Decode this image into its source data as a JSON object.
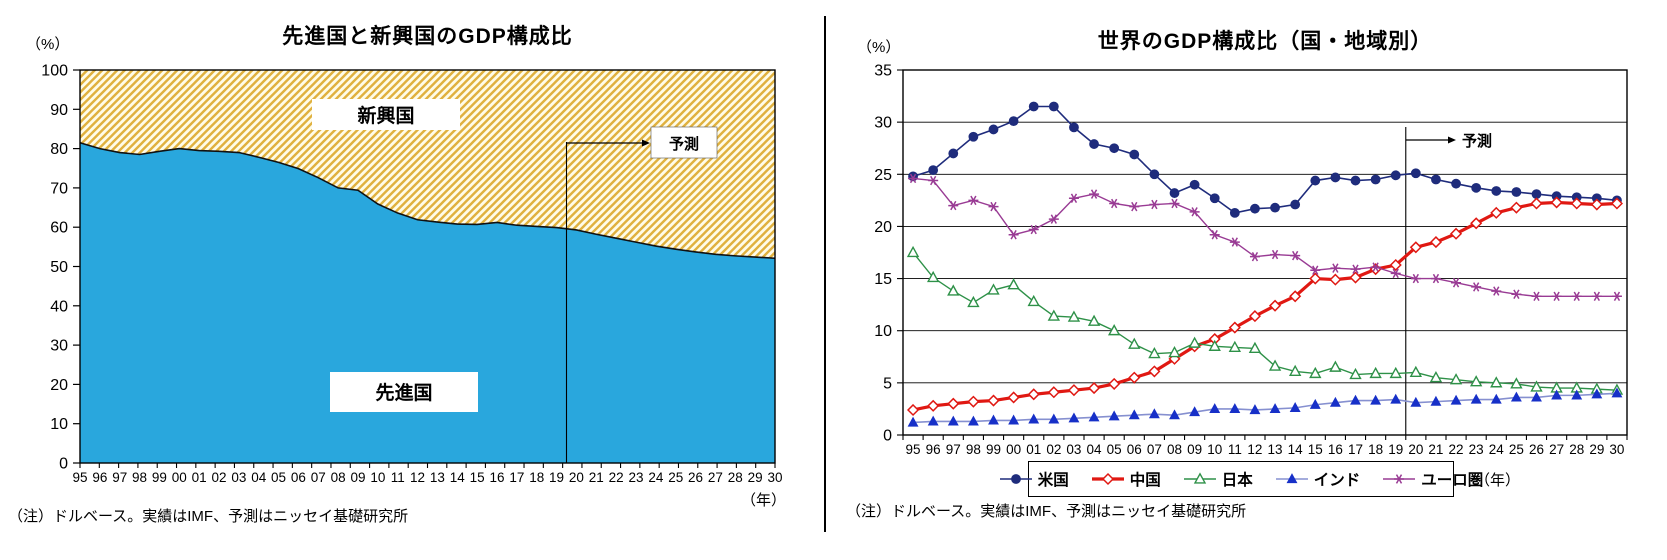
{
  "panels": {
    "left": {
      "title": "先進国と新興国のGDP構成比",
      "unit_percent": "（%）",
      "unit_year": "（年）",
      "note": "（注）ドルベース。実績はIMF、予測はニッセイ基礎研究所",
      "labels": {
        "emerging": "新興国",
        "developed": "先進国",
        "forecast": "予測"
      }
    },
    "right": {
      "title": "世界のGDP構成比（国・地域別）",
      "unit_percent": "（%）",
      "unit_year": "（年）",
      "note": "（注）ドルベース。実績はIMF、予測はニッセイ基礎研究所",
      "labels": {
        "forecast": "予測"
      }
    }
  },
  "chart_data": [
    {
      "type": "area",
      "stacked": true,
      "title": "先進国と新興国のGDP構成比",
      "ylabel": "（%）",
      "xlabel": "（年）",
      "ylim": [
        0,
        100
      ],
      "yticks": [
        0,
        10,
        20,
        30,
        40,
        50,
        60,
        70,
        80,
        90,
        100
      ],
      "grid": false,
      "forecast_starts_after_category": "19",
      "annotation": "予測",
      "categories": [
        "95",
        "96",
        "97",
        "98",
        "99",
        "00",
        "01",
        "02",
        "03",
        "04",
        "05",
        "06",
        "07",
        "08",
        "09",
        "10",
        "11",
        "12",
        "13",
        "14",
        "15",
        "16",
        "17",
        "18",
        "19",
        "20",
        "21",
        "22",
        "23",
        "24",
        "25",
        "26",
        "27",
        "28",
        "29",
        "30"
      ],
      "series": [
        {
          "name": "先進国",
          "fill": "solid",
          "color": "#29A7DD",
          "values": [
            81.5,
            80.0,
            79.0,
            78.5,
            79.3,
            80.0,
            79.5,
            79.3,
            79.0,
            77.8,
            76.5,
            74.9,
            72.6,
            70.0,
            69.4,
            65.9,
            63.6,
            61.9,
            61.3,
            60.8,
            60.7,
            61.2,
            60.5,
            60.2,
            59.9,
            59.3,
            58.2,
            57.2,
            56.2,
            55.2,
            54.4,
            53.7,
            53.1,
            52.7,
            52.4,
            52.1
          ]
        },
        {
          "name": "新興国",
          "fill": "diagonal-hatch",
          "color": "#E0B13F",
          "hatch_bg": "#FFFCE8",
          "values": [
            18.5,
            20.0,
            21.0,
            21.5,
            20.7,
            20.0,
            20.5,
            20.7,
            21.0,
            22.2,
            23.5,
            25.1,
            27.4,
            30.0,
            30.6,
            34.1,
            36.4,
            38.1,
            38.7,
            39.2,
            39.3,
            38.8,
            39.5,
            39.8,
            40.1,
            40.7,
            41.8,
            42.8,
            43.8,
            44.8,
            45.6,
            46.3,
            46.9,
            47.3,
            47.6,
            47.9
          ]
        }
      ]
    },
    {
      "type": "line",
      "title": "世界のGDP構成比（国・地域別）",
      "ylabel": "（%）",
      "xlabel": "（年）",
      "ylim": [
        0,
        35
      ],
      "yticks": [
        0,
        5,
        10,
        15,
        20,
        25,
        30,
        35
      ],
      "grid": true,
      "legend_position": "bottom",
      "forecast_starts_after_category": "19",
      "annotation": "予測",
      "categories": [
        "95",
        "96",
        "97",
        "98",
        "99",
        "00",
        "01",
        "02",
        "03",
        "04",
        "05",
        "06",
        "07",
        "08",
        "09",
        "10",
        "11",
        "12",
        "13",
        "14",
        "15",
        "16",
        "17",
        "18",
        "19",
        "20",
        "21",
        "22",
        "23",
        "24",
        "25",
        "26",
        "27",
        "28",
        "29",
        "30"
      ],
      "series": [
        {
          "name": "米国",
          "marker": "circle-filled",
          "color": "#1F2C7C",
          "line_color": "#1F2C7C",
          "line_width": 1.6,
          "values": [
            24.8,
            25.4,
            27.0,
            28.6,
            29.3,
            30.1,
            31.5,
            31.5,
            29.5,
            27.9,
            27.5,
            26.9,
            25.0,
            23.2,
            24.0,
            22.7,
            21.3,
            21.7,
            21.8,
            22.1,
            24.4,
            24.7,
            24.4,
            24.5,
            24.9,
            25.1,
            24.5,
            24.1,
            23.7,
            23.4,
            23.3,
            23.1,
            22.9,
            22.8,
            22.7,
            22.5
          ]
        },
        {
          "name": "中国",
          "marker": "diamond-open",
          "color": "#E01812",
          "line_color": "#E01812",
          "line_width": 3.2,
          "values": [
            2.4,
            2.8,
            3.0,
            3.2,
            3.3,
            3.6,
            3.9,
            4.1,
            4.3,
            4.5,
            4.9,
            5.5,
            6.1,
            7.3,
            8.5,
            9.2,
            10.3,
            11.4,
            12.4,
            13.3,
            15.0,
            14.9,
            15.1,
            15.9,
            16.3,
            18.0,
            18.5,
            19.3,
            20.3,
            21.3,
            21.8,
            22.2,
            22.3,
            22.2,
            22.1,
            22.2
          ]
        },
        {
          "name": "日本",
          "marker": "triangle-open",
          "color": "#2E9148",
          "line_color": "#2E9148",
          "line_width": 1.4,
          "values": [
            17.5,
            15.1,
            13.8,
            12.7,
            13.9,
            14.4,
            12.8,
            11.4,
            11.3,
            10.9,
            10.0,
            8.7,
            7.8,
            7.9,
            8.8,
            8.5,
            8.4,
            8.3,
            6.6,
            6.1,
            5.9,
            6.5,
            5.8,
            5.9,
            5.9,
            6.0,
            5.5,
            5.3,
            5.1,
            5.0,
            4.9,
            4.6,
            4.5,
            4.5,
            4.4,
            4.3
          ]
        },
        {
          "name": "インド",
          "marker": "triangle-filled",
          "color": "#1730C8",
          "line_color": "#8690D0",
          "line_width": 1.6,
          "values": [
            1.2,
            1.3,
            1.3,
            1.3,
            1.4,
            1.4,
            1.5,
            1.5,
            1.6,
            1.7,
            1.8,
            1.9,
            2.0,
            1.9,
            2.2,
            2.5,
            2.5,
            2.4,
            2.5,
            2.6,
            2.9,
            3.1,
            3.3,
            3.3,
            3.4,
            3.1,
            3.2,
            3.3,
            3.4,
            3.4,
            3.6,
            3.6,
            3.8,
            3.8,
            3.9,
            4.0
          ]
        },
        {
          "name": "ユーロ圏",
          "marker": "asterisk",
          "color": "#993B94",
          "line_color": "#993B94",
          "line_width": 1.4,
          "values": [
            24.6,
            24.4,
            22.0,
            22.5,
            21.9,
            19.2,
            19.7,
            20.7,
            22.7,
            23.1,
            22.2,
            21.9,
            22.1,
            22.2,
            21.4,
            19.2,
            18.5,
            17.1,
            17.3,
            17.2,
            15.8,
            16.0,
            15.9,
            16.1,
            15.5,
            15.0,
            15.0,
            14.6,
            14.2,
            13.8,
            13.5,
            13.3,
            13.3,
            13.3,
            13.3,
            13.3
          ]
        }
      ]
    }
  ]
}
